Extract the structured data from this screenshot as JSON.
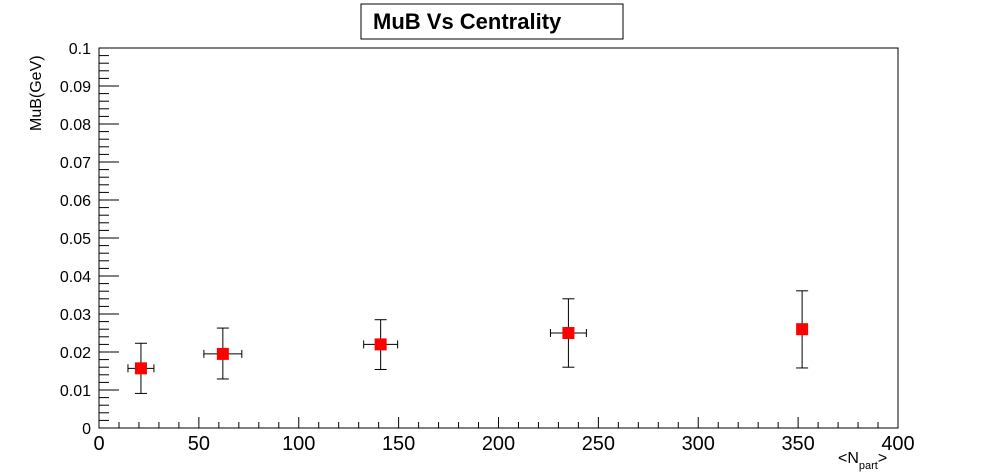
{
  "chart_data": {
    "type": "scatter",
    "title": "MuB Vs Centrality",
    "xlabel": "<N",
    "xlabel_sub": "part",
    "xlabel_end": ">",
    "ylabel": "MuB(GeV)",
    "xlim": [
      0,
      400
    ],
    "ylim": [
      0,
      0.1
    ],
    "x_ticks": [
      "0",
      "50",
      "100",
      "150",
      "200",
      "250",
      "300",
      "350",
      "400"
    ],
    "y_ticks": [
      "0",
      "0.01",
      "0.02",
      "0.03",
      "0.04",
      "0.05",
      "0.06",
      "0.07",
      "0.08",
      "0.09",
      "0.1"
    ],
    "grid": false,
    "marker": "square",
    "marker_color": "#ff0000",
    "points": [
      {
        "x": 21,
        "y": 0.0157,
        "x_err": 6.5,
        "y_err_low": 0.0066,
        "y_err_high": 0.0066
      },
      {
        "x": 62,
        "y": 0.0195,
        "x_err": 9.5,
        "y_err_low": 0.0066,
        "y_err_high": 0.0068
      },
      {
        "x": 141,
        "y": 0.022,
        "x_err": 8.5,
        "y_err_low": 0.0066,
        "y_err_high": 0.0065
      },
      {
        "x": 235,
        "y": 0.025,
        "x_err": 9,
        "y_err_low": 0.009,
        "y_err_high": 0.009
      },
      {
        "x": 352,
        "y": 0.026,
        "x_err": 0,
        "y_err_low": 0.0102,
        "y_err_high": 0.0101
      }
    ]
  }
}
